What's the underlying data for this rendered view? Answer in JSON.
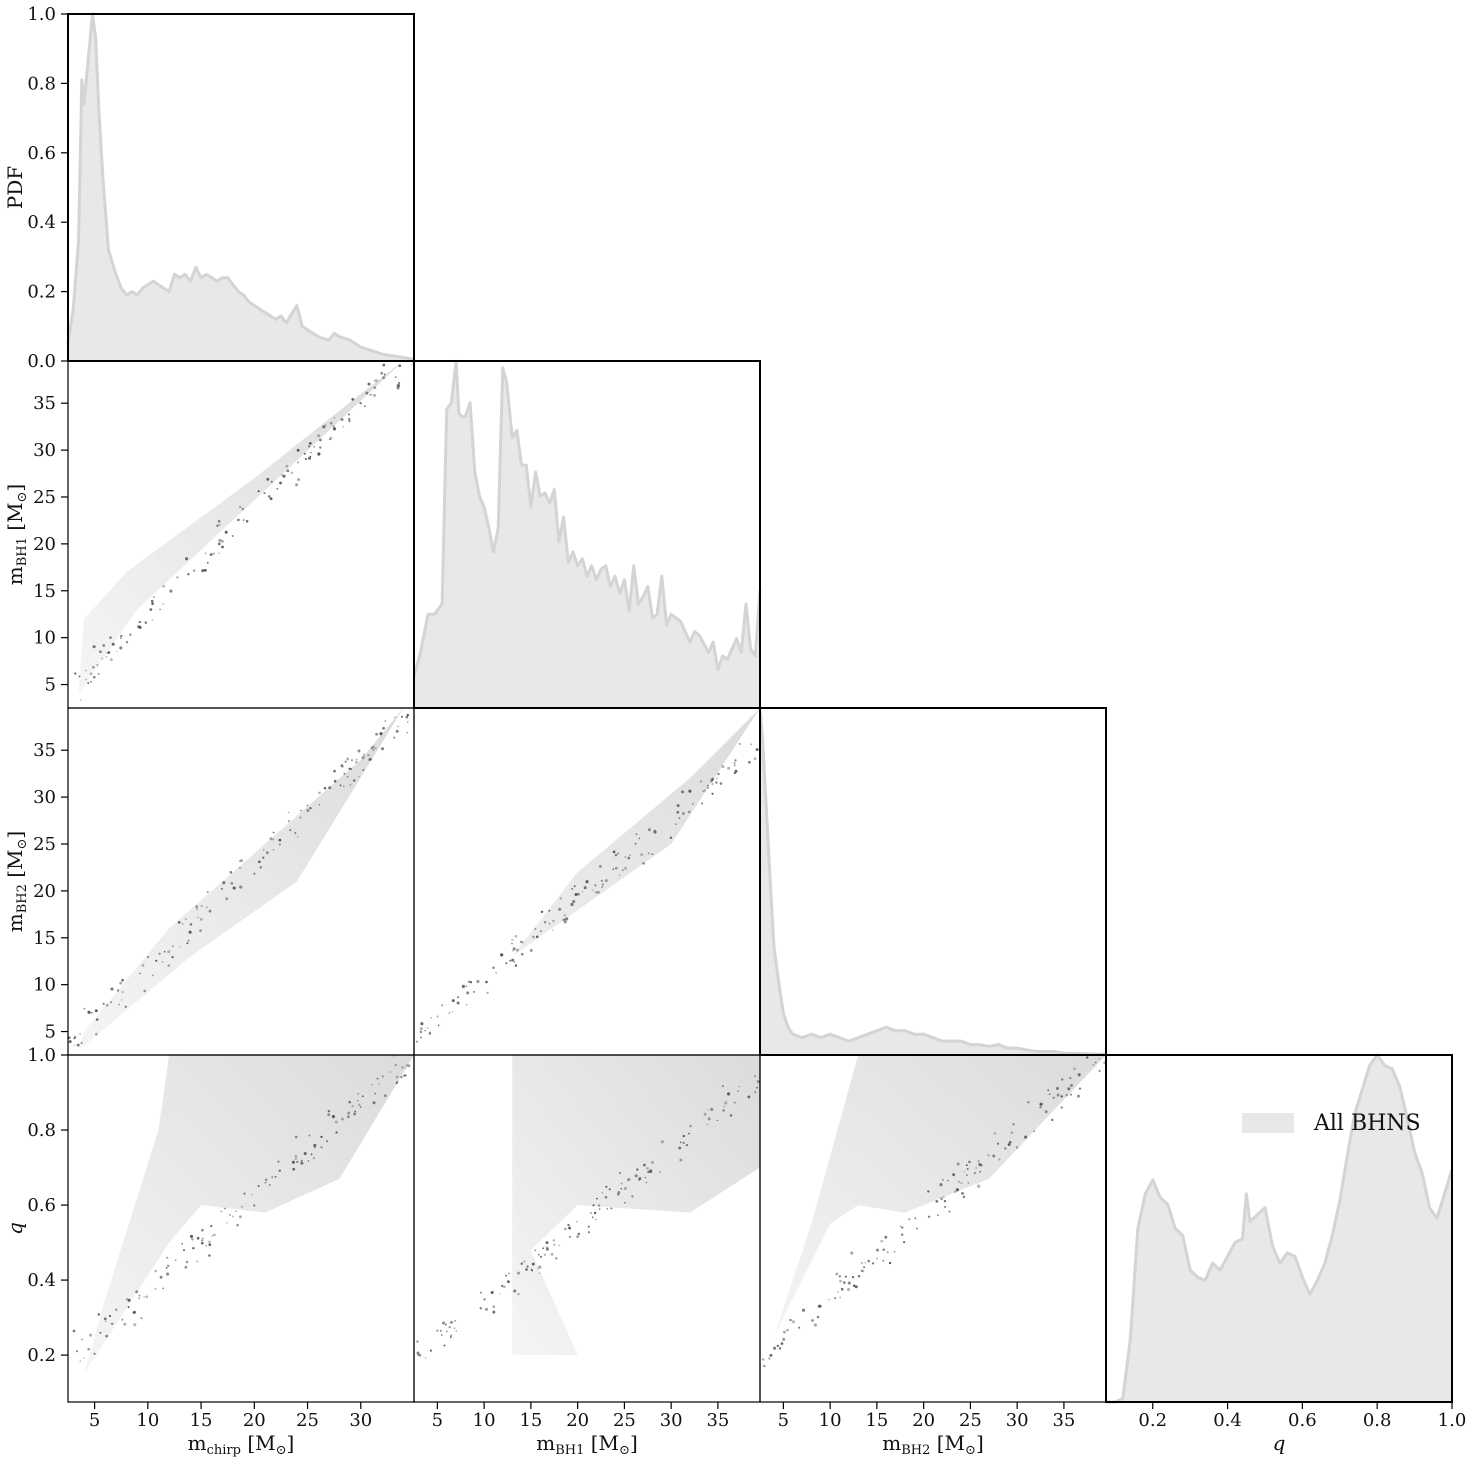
{
  "chart_data": {
    "type": "corner",
    "style": {
      "fill_color": "#e8e8e8",
      "line_color": "#d4d4d4",
      "frame_color": "#000000",
      "scatter_color": "#444444"
    },
    "variables": [
      {
        "key": "mchirp",
        "label": "m_chirp [M_⊙]",
        "label_main": "m",
        "label_sub": "chirp",
        "label_unit": " [M",
        "label_unit_end": "]",
        "range": [
          2.5,
          35
        ],
        "ticks": [
          5,
          10,
          15,
          20,
          25,
          30
        ]
      },
      {
        "key": "mbh1",
        "label": "m_BH1 [M_⊙]",
        "label_main": "m",
        "label_sub": "BH1",
        "label_unit": " [M",
        "label_unit_end": "]",
        "range": [
          2.5,
          39.5
        ],
        "ticks": [
          5,
          10,
          15,
          20,
          25,
          30,
          35
        ]
      },
      {
        "key": "mbh2",
        "label": "m_BH2 [M_⊙]",
        "label_main": "m",
        "label_sub": "BH2",
        "label_unit": " [M",
        "label_unit_end": "]",
        "range": [
          2.5,
          39.5
        ],
        "ticks": [
          5,
          10,
          15,
          20,
          25,
          30,
          35
        ]
      },
      {
        "key": "q",
        "label": "q",
        "label_main": "q",
        "label_sub": "",
        "label_unit": "",
        "label_unit_end": "",
        "range": [
          0.075,
          1.0
        ],
        "ticks": [
          0.2,
          0.4,
          0.6,
          0.8,
          1.0
        ]
      }
    ],
    "pdf_axis": {
      "label": "PDF",
      "range": [
        0,
        1
      ],
      "ticks": [
        0.0,
        0.2,
        0.4,
        0.6,
        0.8,
        1.0
      ]
    },
    "legend": {
      "label": "All BHNS",
      "placement": "upper-right of q panel"
    },
    "diagonals": [
      {
        "variable": "mchirp",
        "x": [
          2.5,
          3.0,
          3.5,
          3.8,
          4.0,
          4.4,
          4.8,
          5.1,
          5.4,
          5.8,
          6.3,
          7.0,
          7.5,
          8.0,
          8.5,
          9.0,
          9.5,
          10.0,
          10.5,
          11.0,
          12.0,
          12.5,
          13.0,
          13.5,
          14.0,
          14.5,
          15.0,
          15.5,
          16.0,
          16.5,
          17.0,
          17.5,
          18.0,
          18.5,
          19.0,
          19.5,
          20.0,
          21.0,
          22.0,
          22.5,
          23.0,
          24.0,
          24.5,
          25.0,
          25.5,
          26.0,
          27.0,
          27.5,
          28.0,
          29.0,
          30.0,
          31.0,
          32.0,
          33.0,
          34.0,
          35.0
        ],
        "y": [
          0.05,
          0.15,
          0.35,
          0.81,
          0.74,
          0.87,
          1.0,
          0.93,
          0.72,
          0.52,
          0.32,
          0.25,
          0.21,
          0.19,
          0.2,
          0.19,
          0.21,
          0.22,
          0.23,
          0.22,
          0.2,
          0.25,
          0.24,
          0.25,
          0.23,
          0.27,
          0.24,
          0.25,
          0.24,
          0.23,
          0.24,
          0.24,
          0.22,
          0.2,
          0.19,
          0.17,
          0.16,
          0.14,
          0.12,
          0.13,
          0.11,
          0.16,
          0.1,
          0.09,
          0.08,
          0.07,
          0.06,
          0.08,
          0.07,
          0.06,
          0.04,
          0.03,
          0.02,
          0.015,
          0.01,
          0.005
        ]
      },
      {
        "variable": "mbh1",
        "x": [
          2.5,
          3.2,
          4.0,
          4.7,
          5.5,
          6.0,
          6.5,
          7.0,
          7.3,
          7.6,
          8.0,
          8.5,
          9.0,
          9.5,
          10.0,
          10.5,
          11.0,
          11.5,
          12.0,
          12.4,
          13.0,
          13.5,
          14.0,
          14.5,
          15.0,
          15.5,
          16.0,
          16.5,
          17.0,
          17.5,
          18.0,
          18.5,
          19.0,
          19.5,
          20.0,
          20.5,
          21.0,
          21.5,
          22.0,
          22.5,
          23.0,
          23.5,
          24.0,
          24.5,
          25.0,
          25.5,
          26.0,
          26.5,
          27.0,
          27.5,
          28.0,
          28.5,
          29.0,
          29.5,
          30.0,
          31.0,
          32.0,
          32.5,
          33.0,
          34.0,
          34.5,
          35.0,
          35.5,
          36.0,
          36.5,
          37.0,
          37.5,
          38.0,
          38.5,
          39.0,
          39.5
        ],
        "y": [
          0.09,
          0.16,
          0.27,
          0.27,
          0.3,
          0.86,
          0.88,
          1.0,
          0.85,
          0.84,
          0.84,
          0.88,
          0.68,
          0.61,
          0.58,
          0.52,
          0.45,
          0.52,
          0.98,
          0.94,
          0.78,
          0.8,
          0.7,
          0.7,
          0.58,
          0.68,
          0.61,
          0.62,
          0.59,
          0.63,
          0.48,
          0.55,
          0.42,
          0.45,
          0.41,
          0.43,
          0.38,
          0.41,
          0.37,
          0.4,
          0.41,
          0.35,
          0.38,
          0.33,
          0.37,
          0.28,
          0.41,
          0.3,
          0.32,
          0.35,
          0.26,
          0.27,
          0.38,
          0.24,
          0.27,
          0.25,
          0.19,
          0.22,
          0.21,
          0.16,
          0.19,
          0.11,
          0.15,
          0.14,
          0.17,
          0.2,
          0.16,
          0.3,
          0.17,
          0.15,
          0.34
        ]
      },
      {
        "variable": "mbh2",
        "x": [
          2.5,
          2.8,
          3.2,
          3.7,
          4.0,
          4.5,
          5.0,
          5.5,
          6.0,
          7.0,
          8.0,
          9.0,
          10.0,
          11.0,
          12.0,
          13.0,
          14.0,
          15.0,
          16.0,
          17.0,
          18.0,
          19.0,
          20.0,
          21.0,
          22.0,
          23.0,
          24.0,
          25.0,
          26.0,
          27.0,
          28.0,
          29.0,
          30.0,
          31.0,
          32.0,
          33.0,
          34.0,
          35.0,
          36.0,
          37.0,
          38.0,
          39.5
        ],
        "y": [
          1.0,
          0.9,
          0.7,
          0.45,
          0.31,
          0.21,
          0.12,
          0.08,
          0.06,
          0.05,
          0.06,
          0.05,
          0.06,
          0.05,
          0.04,
          0.05,
          0.06,
          0.07,
          0.08,
          0.07,
          0.07,
          0.06,
          0.06,
          0.05,
          0.04,
          0.04,
          0.04,
          0.03,
          0.03,
          0.025,
          0.03,
          0.02,
          0.02,
          0.015,
          0.01,
          0.01,
          0.01,
          0.005,
          0.005,
          0.004,
          0.003,
          0.002
        ]
      },
      {
        "variable": "q",
        "x": [
          0.075,
          0.1,
          0.12,
          0.14,
          0.16,
          0.18,
          0.2,
          0.22,
          0.24,
          0.26,
          0.28,
          0.3,
          0.32,
          0.34,
          0.36,
          0.38,
          0.4,
          0.42,
          0.44,
          0.45,
          0.46,
          0.48,
          0.5,
          0.52,
          0.54,
          0.56,
          0.58,
          0.6,
          0.62,
          0.64,
          0.66,
          0.68,
          0.7,
          0.72,
          0.74,
          0.76,
          0.78,
          0.8,
          0.82,
          0.84,
          0.86,
          0.88,
          0.9,
          0.92,
          0.94,
          0.96,
          0.98,
          1.0
        ],
        "y": [
          0.0,
          0.0,
          0.01,
          0.18,
          0.5,
          0.6,
          0.64,
          0.59,
          0.57,
          0.5,
          0.48,
          0.38,
          0.36,
          0.35,
          0.4,
          0.38,
          0.42,
          0.46,
          0.47,
          0.6,
          0.52,
          0.54,
          0.56,
          0.45,
          0.4,
          0.43,
          0.42,
          0.36,
          0.31,
          0.35,
          0.4,
          0.48,
          0.58,
          0.71,
          0.83,
          0.9,
          0.97,
          1.0,
          0.97,
          0.96,
          0.91,
          0.82,
          0.72,
          0.66,
          0.56,
          0.53,
          0.6,
          0.67
        ]
      }
    ],
    "scatter_panels": [
      {
        "x": "mchirp",
        "y": "mbh1"
      },
      {
        "x": "mchirp",
        "y": "mbh2"
      },
      {
        "x": "mbh1",
        "y": "mbh2"
      },
      {
        "x": "mchirp",
        "y": "q"
      },
      {
        "x": "mbh1",
        "y": "q"
      },
      {
        "x": "mbh2",
        "y": "q"
      }
    ]
  }
}
